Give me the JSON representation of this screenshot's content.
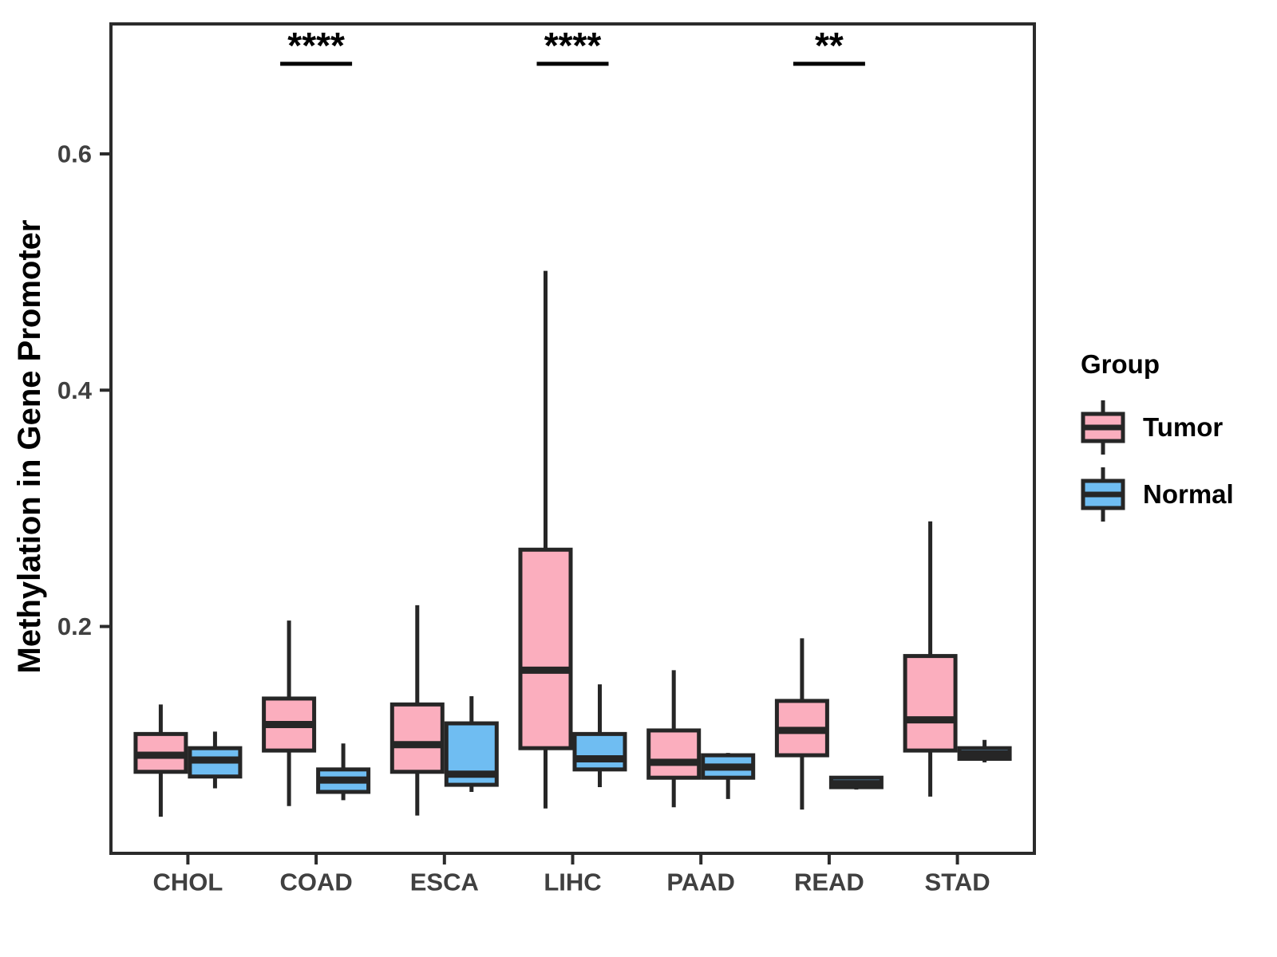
{
  "y_axis": {
    "label": "Methylation in Gene Promoter"
  },
  "legend": {
    "title": "Group",
    "items": [
      {
        "label": "Tumor",
        "color": "#FBAEBE"
      },
      {
        "label": "Normal",
        "color": "#6FBDF2"
      }
    ]
  },
  "style": {
    "box_border": "#262626",
    "axis_color": "#2B2B2B",
    "tick_label_color": "#404040",
    "annotation_color": "#000000",
    "background": "#FFFFFF"
  },
  "chart_data": {
    "type": "boxplot",
    "title": "",
    "xlabel": "",
    "ylabel": "Methylation in Gene Promoter",
    "grid": false,
    "legend_position": "right",
    "ylim": [
      0.008,
      0.71
    ],
    "yticks": [
      {
        "value": 0.2,
        "label": "0.2"
      },
      {
        "value": 0.4,
        "label": "0.4"
      },
      {
        "value": 0.6,
        "label": "0.6"
      }
    ],
    "categories": [
      "CHOL",
      "COAD",
      "ESCA",
      "LIHC",
      "PAAD",
      "READ",
      "STAD"
    ],
    "series": [
      {
        "name": "Tumor",
        "color": "#FBAEBE",
        "boxes": [
          {
            "low": 0.039,
            "q1": 0.077,
            "median": 0.091,
            "q3": 0.109,
            "high": 0.134
          },
          {
            "low": 0.048,
            "q1": 0.095,
            "median": 0.117,
            "q3": 0.139,
            "high": 0.205
          },
          {
            "low": 0.04,
            "q1": 0.077,
            "median": 0.1,
            "q3": 0.134,
            "high": 0.218
          },
          {
            "low": 0.046,
            "q1": 0.097,
            "median": 0.163,
            "q3": 0.265,
            "high": 0.501
          },
          {
            "low": 0.047,
            "q1": 0.072,
            "median": 0.085,
            "q3": 0.112,
            "high": 0.163
          },
          {
            "low": 0.045,
            "q1": 0.091,
            "median": 0.112,
            "q3": 0.137,
            "high": 0.19
          },
          {
            "low": 0.056,
            "q1": 0.095,
            "median": 0.121,
            "q3": 0.175,
            "high": 0.289
          }
        ]
      },
      {
        "name": "Normal",
        "color": "#6FBDF2",
        "boxes": [
          {
            "low": 0.063,
            "q1": 0.073,
            "median": 0.087,
            "q3": 0.097,
            "high": 0.111
          },
          {
            "low": 0.053,
            "q1": 0.06,
            "median": 0.07,
            "q3": 0.079,
            "high": 0.101
          },
          {
            "low": 0.06,
            "q1": 0.066,
            "median": 0.075,
            "q3": 0.118,
            "high": 0.141
          },
          {
            "low": 0.064,
            "q1": 0.079,
            "median": 0.088,
            "q3": 0.109,
            "high": 0.151
          },
          {
            "low": 0.054,
            "q1": 0.072,
            "median": 0.081,
            "q3": 0.091,
            "high": 0.093
          },
          {
            "low": 0.062,
            "q1": 0.064,
            "median": 0.067,
            "q3": 0.072,
            "high": 0.073
          },
          {
            "low": 0.085,
            "q1": 0.088,
            "median": 0.092,
            "q3": 0.097,
            "high": 0.104
          }
        ]
      }
    ],
    "annotations": [
      {
        "category": "COAD",
        "text": "****"
      },
      {
        "category": "LIHC",
        "text": "****"
      },
      {
        "category": "READ",
        "text": "**"
      }
    ]
  }
}
